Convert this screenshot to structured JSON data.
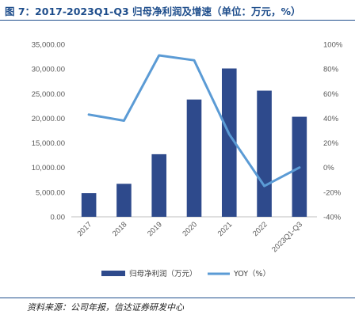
{
  "figure": {
    "title": "图 7：2017-2023Q1-Q3 归母净利润及增速（单位：万元，%）",
    "source": "资料来源：公司年报，信达证券研发中心"
  },
  "chart_data": {
    "type": "bar",
    "categories": [
      "2017",
      "2018",
      "2019",
      "2020",
      "2021",
      "2022",
      "2023Q1-Q3"
    ],
    "series": [
      {
        "name": "归母净利润（万元）",
        "type": "bar",
        "axis": "left",
        "values": [
          4800,
          6700,
          12700,
          23800,
          30100,
          25600,
          20300
        ],
        "color": "#2e4a8c"
      },
      {
        "name": "YOY（%）",
        "type": "line",
        "axis": "right",
        "values": [
          43,
          38,
          91,
          87,
          27,
          -15,
          0
        ],
        "color": "#5b9bd5"
      }
    ],
    "y_left": {
      "min": 0,
      "max": 35000,
      "ticks": [
        "0.00",
        "5,000.00",
        "10,000.00",
        "15,000.00",
        "20,000.00",
        "25,000.00",
        "30,000.00",
        "35,000.00"
      ]
    },
    "y_right": {
      "min": -40,
      "max": 100,
      "ticks": [
        "-40%",
        "-20%",
        "0%",
        "20%",
        "40%",
        "60%",
        "80%",
        "100%"
      ]
    },
    "grid": false,
    "legend_position": "bottom"
  }
}
